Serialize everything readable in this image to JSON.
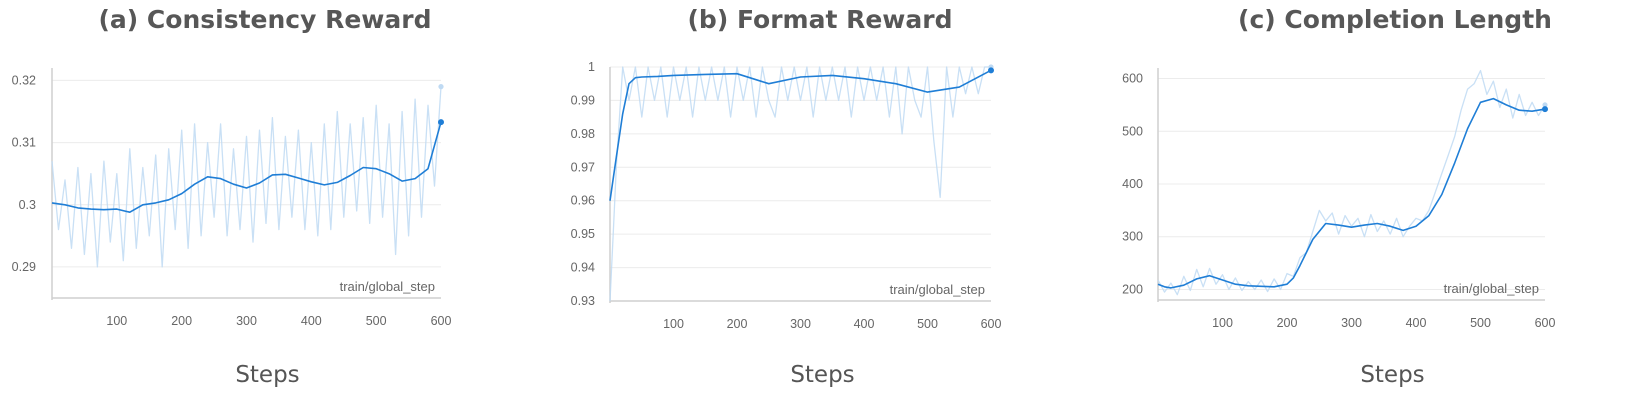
{
  "chart_data": [
    {
      "type": "line",
      "title": "(a) Consistency Reward",
      "xlabel": "Steps",
      "step_label": "train/global_step",
      "xlim": [
        0,
        600
      ],
      "ylim": [
        0.285,
        0.322
      ],
      "xticks": [
        "100",
        "200",
        "300",
        "400",
        "500",
        "600"
      ],
      "xtick_values": [
        100,
        200,
        300,
        400,
        500,
        600
      ],
      "yticks": [
        "0.29",
        "0.3",
        "0.31",
        "0.32"
      ],
      "ytick_values": [
        0.29,
        0.3,
        0.31,
        0.32
      ],
      "grid": true,
      "series": [
        {
          "role": "smoothed",
          "color": "#1f7ed6",
          "x": [
            0,
            20,
            40,
            60,
            80,
            100,
            120,
            140,
            160,
            180,
            200,
            220,
            240,
            260,
            280,
            300,
            320,
            340,
            360,
            380,
            400,
            420,
            440,
            460,
            480,
            500,
            520,
            540,
            560,
            580,
            600
          ],
          "y": [
            0.3003,
            0.3,
            0.2995,
            0.2993,
            0.2992,
            0.2993,
            0.2988,
            0.3,
            0.3003,
            0.3008,
            0.3018,
            0.3033,
            0.3045,
            0.3042,
            0.3033,
            0.3027,
            0.3035,
            0.3048,
            0.3049,
            0.3043,
            0.3037,
            0.3032,
            0.3036,
            0.3047,
            0.306,
            0.3058,
            0.305,
            0.3038,
            0.3042,
            0.3058,
            0.3133
          ]
        },
        {
          "role": "raw",
          "color": "#bfdaf3",
          "x": [
            0,
            10,
            20,
            30,
            40,
            50,
            60,
            70,
            80,
            90,
            100,
            110,
            120,
            130,
            140,
            150,
            160,
            170,
            180,
            190,
            200,
            210,
            220,
            230,
            240,
            250,
            260,
            270,
            280,
            290,
            300,
            310,
            320,
            330,
            340,
            350,
            360,
            370,
            380,
            390,
            400,
            410,
            420,
            430,
            440,
            450,
            460,
            470,
            480,
            490,
            500,
            510,
            520,
            530,
            540,
            550,
            560,
            570,
            580,
            590,
            600
          ],
          "y": [
            0.307,
            0.296,
            0.304,
            0.293,
            0.306,
            0.292,
            0.305,
            0.29,
            0.307,
            0.294,
            0.305,
            0.291,
            0.309,
            0.293,
            0.306,
            0.295,
            0.308,
            0.29,
            0.309,
            0.296,
            0.312,
            0.293,
            0.313,
            0.295,
            0.31,
            0.298,
            0.313,
            0.295,
            0.309,
            0.296,
            0.311,
            0.294,
            0.312,
            0.297,
            0.314,
            0.296,
            0.311,
            0.298,
            0.312,
            0.296,
            0.31,
            0.295,
            0.313,
            0.296,
            0.315,
            0.298,
            0.313,
            0.299,
            0.314,
            0.297,
            0.316,
            0.298,
            0.313,
            0.292,
            0.315,
            0.295,
            0.317,
            0.298,
            0.316,
            0.303,
            0.319
          ]
        }
      ]
    },
    {
      "type": "line",
      "title": "(b) Format Reward",
      "xlabel": "Steps",
      "step_label": "train/global_step",
      "xlim": [
        0,
        600
      ],
      "ylim": [
        0.93,
        1.0
      ],
      "xticks": [
        "100",
        "200",
        "300",
        "400",
        "500",
        "600"
      ],
      "xtick_values": [
        100,
        200,
        300,
        400,
        500,
        600
      ],
      "yticks": [
        "0.93",
        "0.94",
        "0.95",
        "0.96",
        "0.97",
        "0.98",
        "0.99",
        "1"
      ],
      "ytick_values": [
        0.93,
        0.94,
        0.95,
        0.96,
        0.97,
        0.98,
        0.99,
        1.0
      ],
      "grid": true,
      "series": [
        {
          "role": "smoothed",
          "color": "#1f7ed6",
          "x": [
            0,
            10,
            20,
            30,
            40,
            50,
            75,
            100,
            150,
            200,
            250,
            300,
            350,
            400,
            450,
            500,
            550,
            600
          ],
          "y": [
            0.96,
            0.973,
            0.986,
            0.995,
            0.9968,
            0.997,
            0.9972,
            0.9975,
            0.9978,
            0.998,
            0.995,
            0.997,
            0.9975,
            0.9965,
            0.995,
            0.9925,
            0.994,
            0.999
          ]
        },
        {
          "role": "raw",
          "color": "#bfdaf3",
          "x": [
            0,
            5,
            10,
            20,
            30,
            40,
            50,
            60,
            70,
            80,
            90,
            100,
            110,
            120,
            130,
            140,
            150,
            160,
            170,
            180,
            190,
            200,
            210,
            220,
            230,
            240,
            250,
            260,
            270,
            280,
            290,
            300,
            310,
            320,
            330,
            340,
            350,
            360,
            370,
            380,
            390,
            400,
            410,
            420,
            430,
            440,
            450,
            460,
            470,
            480,
            490,
            500,
            510,
            520,
            530,
            540,
            550,
            560,
            570,
            580,
            590,
            600
          ],
          "y": [
            0.93,
            0.95,
            0.97,
            1.0,
            0.99,
            1.0,
            0.985,
            1.0,
            0.99,
            1.0,
            0.985,
            1.0,
            0.99,
            1.0,
            0.985,
            1.0,
            0.99,
            1.0,
            0.99,
            1.0,
            0.985,
            1.0,
            0.99,
            1.0,
            0.985,
            1.0,
            0.99,
            0.985,
            1.0,
            0.99,
            1.0,
            0.99,
            1.0,
            0.985,
            1.0,
            0.99,
            1.0,
            0.99,
            1.0,
            0.985,
            1.0,
            0.99,
            1.0,
            0.99,
            1.0,
            0.985,
            1.0,
            0.98,
            1.0,
            0.99,
            0.985,
            1.0,
            0.978,
            0.961,
            1.0,
            0.985,
            1.0,
            0.992,
            1.0,
            0.992,
            1.0,
            1.0
          ]
        }
      ]
    },
    {
      "type": "line",
      "title": "(c) Completion Length",
      "xlabel": "Steps",
      "step_label": "train/global_step",
      "xlim": [
        0,
        600
      ],
      "ylim": [
        180,
        620
      ],
      "xticks": [
        "100",
        "200",
        "300",
        "400",
        "500",
        "600"
      ],
      "xtick_values": [
        100,
        200,
        300,
        400,
        500,
        600
      ],
      "yticks": [
        "200",
        "300",
        "400",
        "500",
        "600"
      ],
      "ytick_values": [
        200,
        300,
        400,
        500,
        600
      ],
      "grid": true,
      "series": [
        {
          "role": "smoothed",
          "color": "#1f7ed6",
          "x": [
            0,
            10,
            20,
            40,
            60,
            80,
            100,
            120,
            140,
            160,
            180,
            200,
            210,
            220,
            240,
            260,
            280,
            300,
            320,
            340,
            360,
            380,
            400,
            420,
            440,
            460,
            480,
            500,
            520,
            540,
            560,
            580,
            600
          ],
          "y": [
            210,
            205,
            203,
            208,
            220,
            226,
            218,
            210,
            207,
            206,
            205,
            210,
            222,
            245,
            295,
            325,
            322,
            318,
            322,
            325,
            320,
            312,
            320,
            340,
            380,
            440,
            505,
            555,
            562,
            550,
            540,
            538,
            542
          ]
        },
        {
          "role": "raw",
          "color": "#bfdaf3",
          "x": [
            0,
            10,
            20,
            30,
            40,
            50,
            60,
            70,
            80,
            90,
            100,
            110,
            120,
            130,
            140,
            150,
            160,
            170,
            180,
            190,
            200,
            210,
            220,
            230,
            240,
            250,
            260,
            270,
            280,
            290,
            300,
            310,
            320,
            330,
            340,
            350,
            360,
            370,
            380,
            390,
            400,
            410,
            420,
            430,
            440,
            450,
            460,
            470,
            480,
            490,
            500,
            510,
            520,
            530,
            540,
            550,
            560,
            570,
            580,
            590,
            600
          ],
          "y": [
            218,
            195,
            212,
            190,
            225,
            198,
            238,
            205,
            240,
            210,
            228,
            200,
            222,
            198,
            215,
            200,
            218,
            196,
            220,
            200,
            230,
            225,
            260,
            270,
            310,
            350,
            330,
            345,
            305,
            340,
            320,
            335,
            300,
            342,
            310,
            330,
            305,
            335,
            300,
            320,
            335,
            330,
            350,
            385,
            420,
            455,
            490,
            540,
            580,
            590,
            615,
            570,
            595,
            545,
            580,
            525,
            570,
            530,
            555,
            530,
            550
          ]
        }
      ]
    }
  ]
}
